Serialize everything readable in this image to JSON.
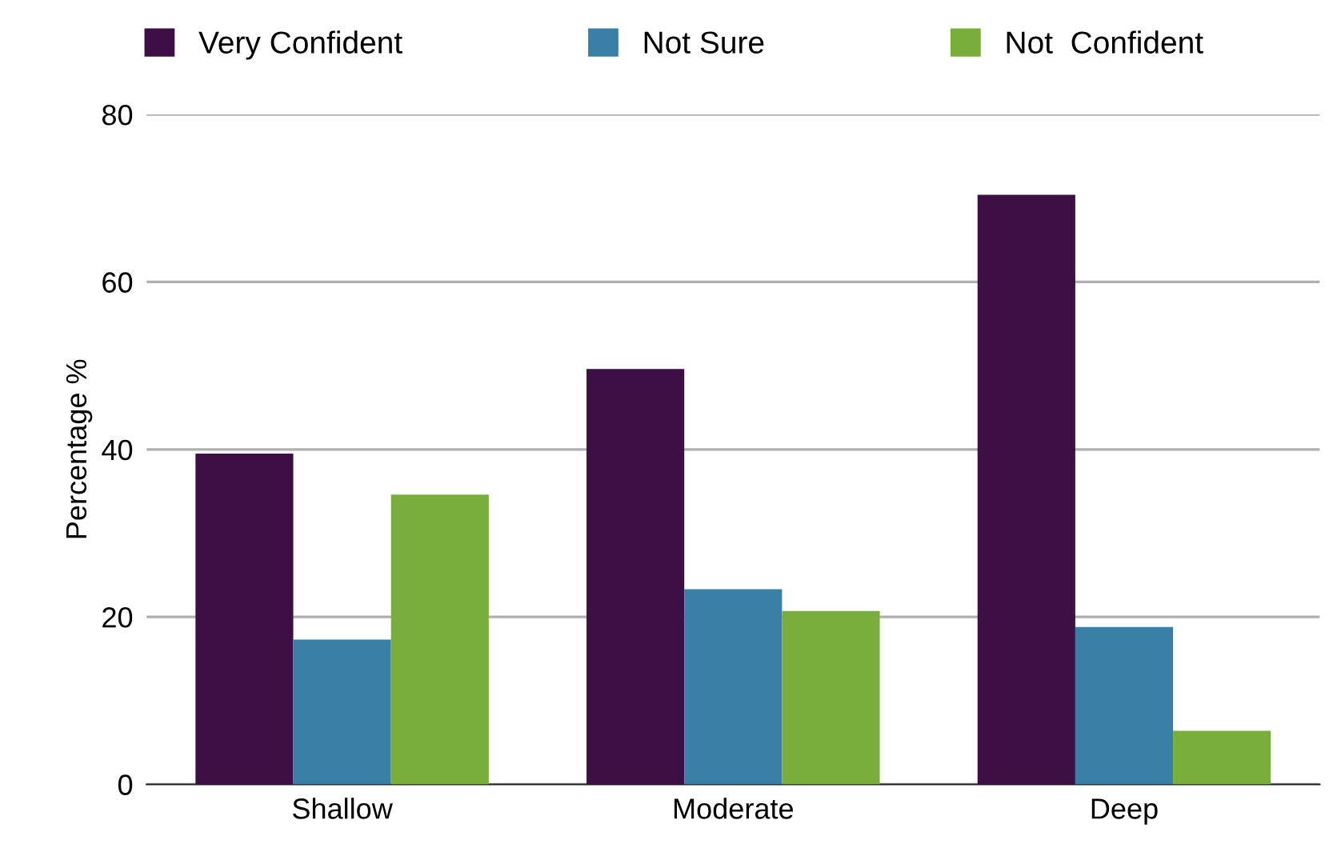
{
  "chart_data": {
    "type": "bar",
    "ylabel": "Percentage %",
    "categories": [
      "Shallow",
      "Moderate",
      "Deep"
    ],
    "series": [
      {
        "name": "Very Confident",
        "color": "#3d0f45",
        "values": [
          39.5,
          49.6,
          70.4
        ]
      },
      {
        "name": "Not Sure",
        "color": "#3a7fa6",
        "values": [
          17.3,
          23.3,
          18.8
        ]
      },
      {
        "name": "Not  Confident",
        "color": "#7aae3c",
        "values": [
          34.6,
          20.7,
          6.4
        ]
      }
    ],
    "ylim": [
      0,
      80
    ],
    "yticks": [
      0,
      20,
      40,
      60,
      80
    ],
    "grid": "y",
    "legend": "top"
  }
}
